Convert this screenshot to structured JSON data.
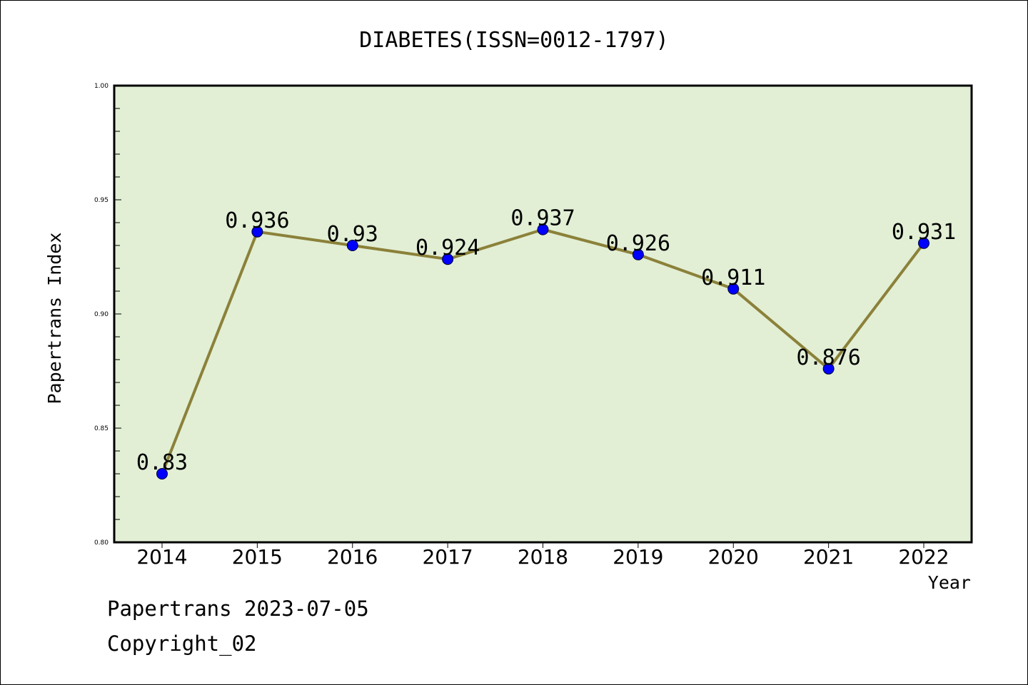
{
  "chart_data": {
    "type": "line",
    "title": "DIABETES(ISSN=0012-1797)",
    "xlabel": "Year",
    "ylabel": "Papertrans Index",
    "categories": [
      "2014",
      "2015",
      "2016",
      "2017",
      "2018",
      "2019",
      "2020",
      "2021",
      "2022"
    ],
    "values": [
      0.83,
      0.936,
      0.93,
      0.924,
      0.937,
      0.926,
      0.911,
      0.876,
      0.931
    ],
    "data_labels": [
      "0.83",
      "0.936",
      "0.93",
      "0.924",
      "0.937",
      "0.926",
      "0.911",
      "0.876",
      "0.931"
    ],
    "ylim": [
      0.8,
      1.0
    ],
    "yticks": [
      "0.80",
      "0.85",
      "0.90",
      "0.95",
      "1.00"
    ],
    "grid": false,
    "colors": {
      "plot_background": "#e2efd5",
      "line": "#8b8139",
      "marker": "#0000ff"
    }
  },
  "footer": {
    "line1": "Papertrans 2023-07-05",
    "line2": "Copyright_02"
  }
}
